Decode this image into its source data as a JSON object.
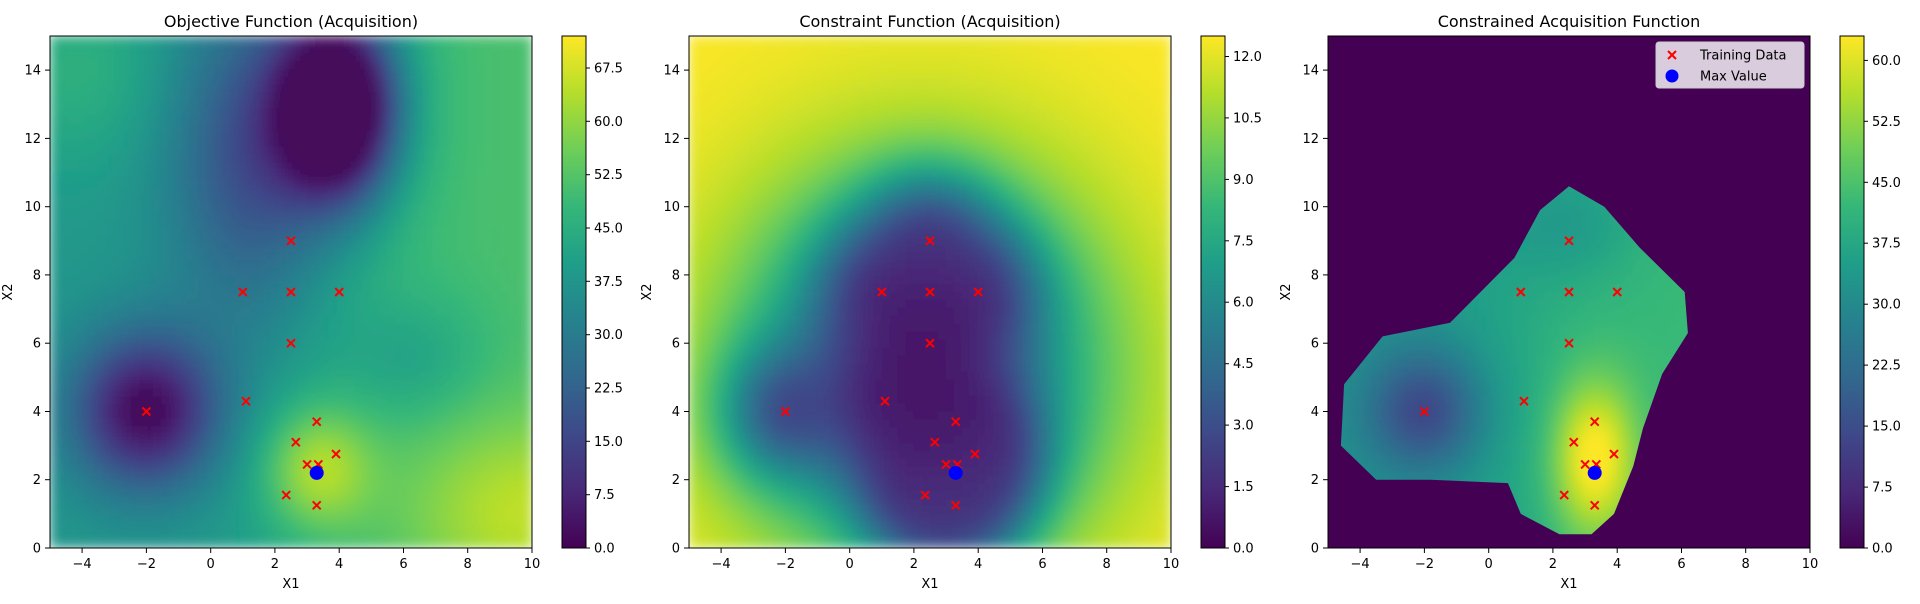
{
  "figure": {
    "background": "#ffffff"
  },
  "colormap": {
    "name": "viridis",
    "stops": [
      "#440154",
      "#482878",
      "#3e4989",
      "#31688e",
      "#26828e",
      "#1f9e89",
      "#35b779",
      "#6ece58",
      "#b5de2b",
      "#fde725"
    ]
  },
  "markers": {
    "training_color": "#ff0000",
    "max_color": "#0000ff"
  },
  "chart_data": [
    {
      "type": "heatmap",
      "title": "Objective Function (Acquisition)",
      "xlabel": "X1",
      "ylabel": "X2",
      "xlim": [
        -5,
        10
      ],
      "ylim": [
        0,
        15
      ],
      "xticks": [
        "−4",
        "−2",
        "0",
        "2",
        "4",
        "6",
        "8",
        "10"
      ],
      "yticks": [
        "0",
        "2",
        "4",
        "6",
        "8",
        "10",
        "12",
        "14"
      ],
      "colorbar": {
        "range": [
          0,
          72
        ],
        "ticks": [
          "0.0",
          "7.5",
          "15.0",
          "22.5",
          "30.0",
          "37.5",
          "45.0",
          "52.5",
          "60.0",
          "67.5"
        ]
      },
      "legend": null,
      "training_data": [
        [
          -2,
          4
        ],
        [
          1,
          7.5
        ],
        [
          2.5,
          9
        ],
        [
          2.5,
          7.5
        ],
        [
          4,
          7.5
        ],
        [
          2.5,
          6
        ],
        [
          1.1,
          4.3
        ],
        [
          3.3,
          3.7
        ],
        [
          2.65,
          3.1
        ],
        [
          3.9,
          2.75
        ],
        [
          3,
          2.45
        ],
        [
          3.35,
          2.45
        ],
        [
          2.35,
          1.55
        ],
        [
          3.3,
          1.25
        ]
      ],
      "max_value": [
        3.3,
        2.2
      ]
    },
    {
      "type": "heatmap",
      "title": "Constraint Function (Acquisition)",
      "xlabel": "X1",
      "ylabel": "X2",
      "xlim": [
        -5,
        10
      ],
      "ylim": [
        0,
        15
      ],
      "xticks": [
        "−4",
        "−2",
        "0",
        "2",
        "4",
        "6",
        "8",
        "10"
      ],
      "yticks": [
        "0",
        "2",
        "4",
        "6",
        "8",
        "10",
        "12",
        "14"
      ],
      "colorbar": {
        "range": [
          0,
          12.5
        ],
        "ticks": [
          "0.0",
          "1.5",
          "3.0",
          "4.5",
          "6.0",
          "7.5",
          "9.0",
          "10.5",
          "12.0"
        ]
      },
      "legend": null,
      "training_data": [
        [
          -2,
          4
        ],
        [
          1,
          7.5
        ],
        [
          2.5,
          9
        ],
        [
          2.5,
          7.5
        ],
        [
          4,
          7.5
        ],
        [
          2.5,
          6
        ],
        [
          1.1,
          4.3
        ],
        [
          3.3,
          3.7
        ],
        [
          2.65,
          3.1
        ],
        [
          3.9,
          2.75
        ],
        [
          3,
          2.45
        ],
        [
          3.35,
          2.45
        ],
        [
          2.35,
          1.55
        ],
        [
          3.3,
          1.25
        ]
      ],
      "max_value": [
        3.3,
        2.2
      ]
    },
    {
      "type": "heatmap",
      "title": "Constrained Acquisition Function",
      "xlabel": "X1",
      "ylabel": "X2",
      "xlim": [
        -5,
        10
      ],
      "ylim": [
        0,
        15
      ],
      "xticks": [
        "−4",
        "−2",
        "0",
        "2",
        "4",
        "6",
        "8",
        "10"
      ],
      "yticks": [
        "0",
        "2",
        "4",
        "6",
        "8",
        "10",
        "12",
        "14"
      ],
      "colorbar": {
        "range": [
          0,
          63
        ],
        "ticks": [
          "0.0",
          "7.5",
          "15.0",
          "22.5",
          "30.0",
          "37.5",
          "45.0",
          "52.5",
          "60.0"
        ]
      },
      "legend": {
        "position": "top-right",
        "entries": [
          "Training Data",
          "Max Value"
        ]
      },
      "feasible_region": [
        [
          -4.5,
          4.8
        ],
        [
          -3.3,
          6.2
        ],
        [
          -1.2,
          6.6
        ],
        [
          0.8,
          8.5
        ],
        [
          1.6,
          9.9
        ],
        [
          2.5,
          10.6
        ],
        [
          3.6,
          10.0
        ],
        [
          4.7,
          8.8
        ],
        [
          6.1,
          7.5
        ],
        [
          6.2,
          6.3
        ],
        [
          5.4,
          5.1
        ],
        [
          4.8,
          3.5
        ],
        [
          4.5,
          2.4
        ],
        [
          3.9,
          1.0
        ],
        [
          3.2,
          0.4
        ],
        [
          2.2,
          0.4
        ],
        [
          1.0,
          1.0
        ],
        [
          0.6,
          1.9
        ],
        [
          -1.8,
          2.0
        ],
        [
          -3.5,
          2.0
        ],
        [
          -4.6,
          3.0
        ]
      ],
      "training_data": [
        [
          -2,
          4
        ],
        [
          1,
          7.5
        ],
        [
          2.5,
          9
        ],
        [
          2.5,
          7.5
        ],
        [
          4,
          7.5
        ],
        [
          2.5,
          6
        ],
        [
          1.1,
          4.3
        ],
        [
          3.3,
          3.7
        ],
        [
          2.65,
          3.1
        ],
        [
          3.9,
          2.75
        ],
        [
          3,
          2.45
        ],
        [
          3.35,
          2.45
        ],
        [
          2.35,
          1.55
        ],
        [
          3.3,
          1.25
        ]
      ],
      "max_value": [
        3.3,
        2.2
      ]
    }
  ]
}
